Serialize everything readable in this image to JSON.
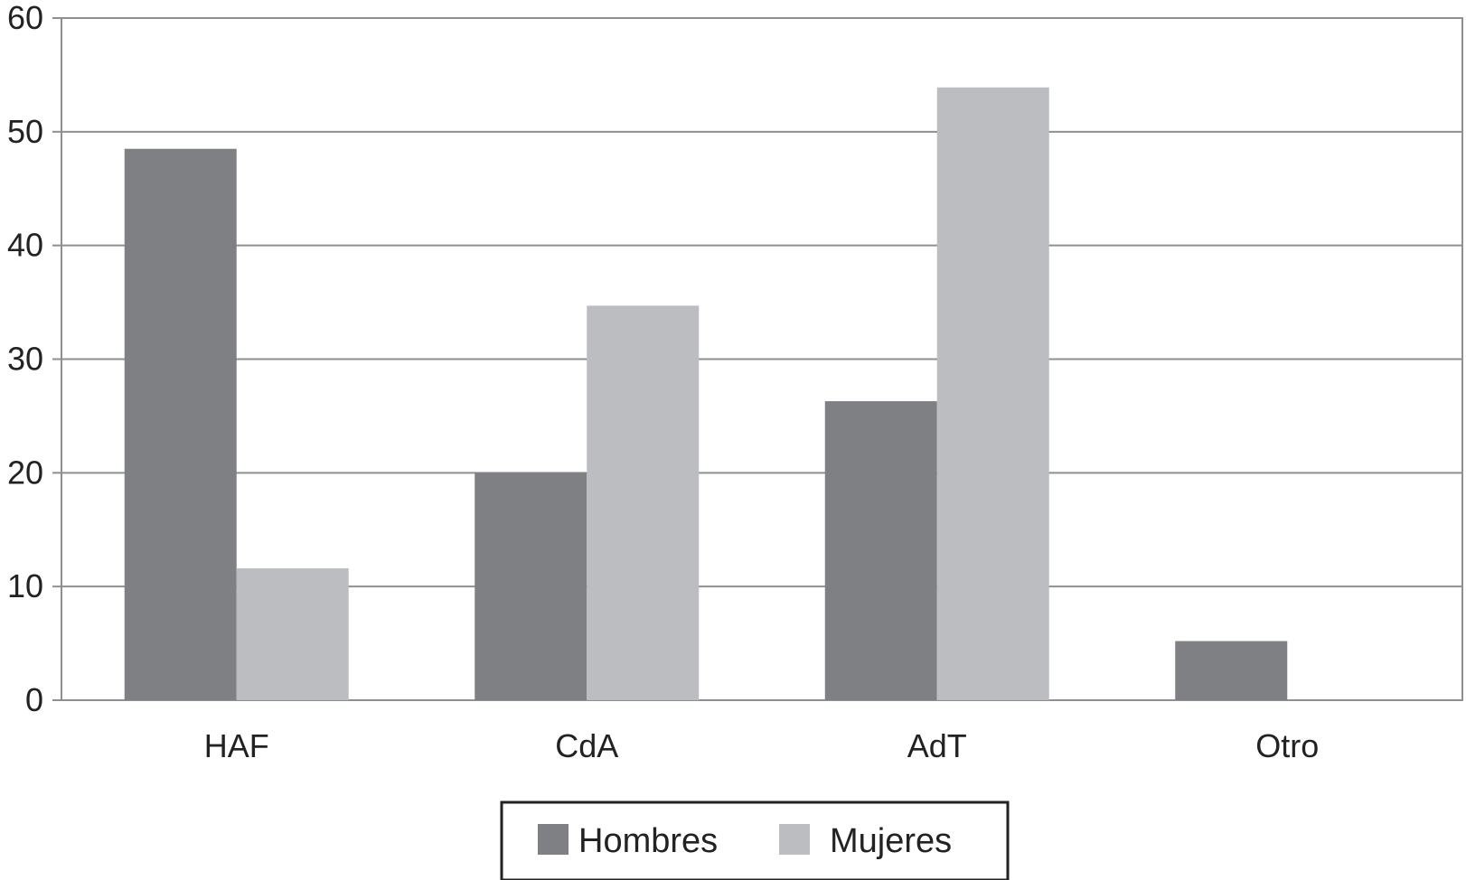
{
  "chart_data": {
    "type": "bar",
    "categories": [
      "HAF",
      "CdA",
      "AdT",
      "Otro"
    ],
    "series": [
      {
        "name": "Hombres",
        "values": [
          48.5,
          20,
          26.3,
          5.2
        ],
        "color": "#7f8083"
      },
      {
        "name": "Mujeres",
        "values": [
          11.6,
          34.7,
          53.9,
          0
        ],
        "color": "#bcbdc0"
      }
    ],
    "ylim": [
      0,
      60
    ],
    "yticks": [
      "0",
      "10",
      "20",
      "30",
      "40",
      "50",
      "60"
    ],
    "grid": true,
    "legend_position": "bottom"
  }
}
